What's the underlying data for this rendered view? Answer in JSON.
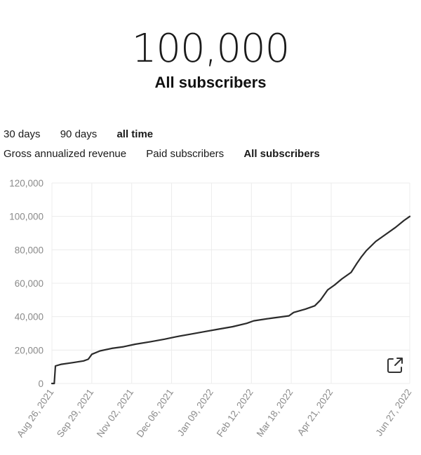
{
  "header": {
    "value": "100,000",
    "label": "All subscribers"
  },
  "range_tabs": [
    {
      "label": "30 days",
      "active": false
    },
    {
      "label": "90 days",
      "active": false
    },
    {
      "label": "all time",
      "active": true
    }
  ],
  "metric_tabs": [
    {
      "label": "Gross annualized revenue",
      "active": false
    },
    {
      "label": "Paid subscribers",
      "active": false
    },
    {
      "label": "All subscribers",
      "active": true
    }
  ],
  "icons": {
    "external_link": "external-link-icon"
  },
  "colors": {
    "line": "#2b2b2b",
    "grid": "#ececec",
    "tick_text": "#8a8a8a"
  },
  "chart_data": {
    "type": "line",
    "title": "",
    "xlabel": "",
    "ylabel": "",
    "ylim": [
      0,
      120000
    ],
    "y_ticks": [
      "0",
      "20,000",
      "40,000",
      "60,000",
      "80,000",
      "100,000",
      "120,000"
    ],
    "x_ticks": [
      "Aug 26, 2021",
      "Sep 29, 2021",
      "Nov 02, 2021",
      "Dec 06, 2021",
      "Jan 09, 2022",
      "Feb 12, 2022",
      "Mar 18, 2022",
      "Apr 21, 2022",
      "Jun 27, 2022"
    ],
    "x_tick_dates": [
      "2021-08-26",
      "2021-09-29",
      "2021-11-02",
      "2021-12-06",
      "2022-01-09",
      "2022-02-12",
      "2022-03-18",
      "2022-04-21",
      "2022-06-27"
    ],
    "grid": true,
    "legend": "none",
    "series": [
      {
        "x": [
          "2021-08-26",
          "2021-08-28",
          "2021-08-29",
          "2021-09-03",
          "2021-09-13",
          "2021-09-22",
          "2021-09-26",
          "2021-09-29",
          "2021-10-06",
          "2021-10-16",
          "2021-10-26",
          "2021-11-05",
          "2021-11-18",
          "2021-11-30",
          "2021-12-10",
          "2021-12-22",
          "2022-01-03",
          "2022-01-15",
          "2022-01-27",
          "2022-02-08",
          "2022-02-14",
          "2022-02-28",
          "2022-03-16",
          "2022-03-20",
          "2022-03-30",
          "2022-04-07",
          "2022-04-12",
          "2022-04-18",
          "2022-04-24",
          "2022-04-30",
          "2022-05-08",
          "2022-05-13",
          "2022-05-17",
          "2022-05-21",
          "2022-05-29",
          "2022-06-06",
          "2022-06-15",
          "2022-06-22",
          "2022-06-27"
        ],
        "y": [
          0,
          0,
          10500,
          11500,
          12500,
          13500,
          14500,
          17500,
          19500,
          21000,
          22000,
          23500,
          25000,
          26500,
          28000,
          29500,
          31000,
          32500,
          34000,
          36000,
          37500,
          39000,
          40500,
          42500,
          44500,
          46500,
          50000,
          56000,
          59000,
          62500,
          66500,
          72000,
          76000,
          79500,
          85000,
          89000,
          93500,
          97500,
          100000
        ]
      }
    ]
  }
}
